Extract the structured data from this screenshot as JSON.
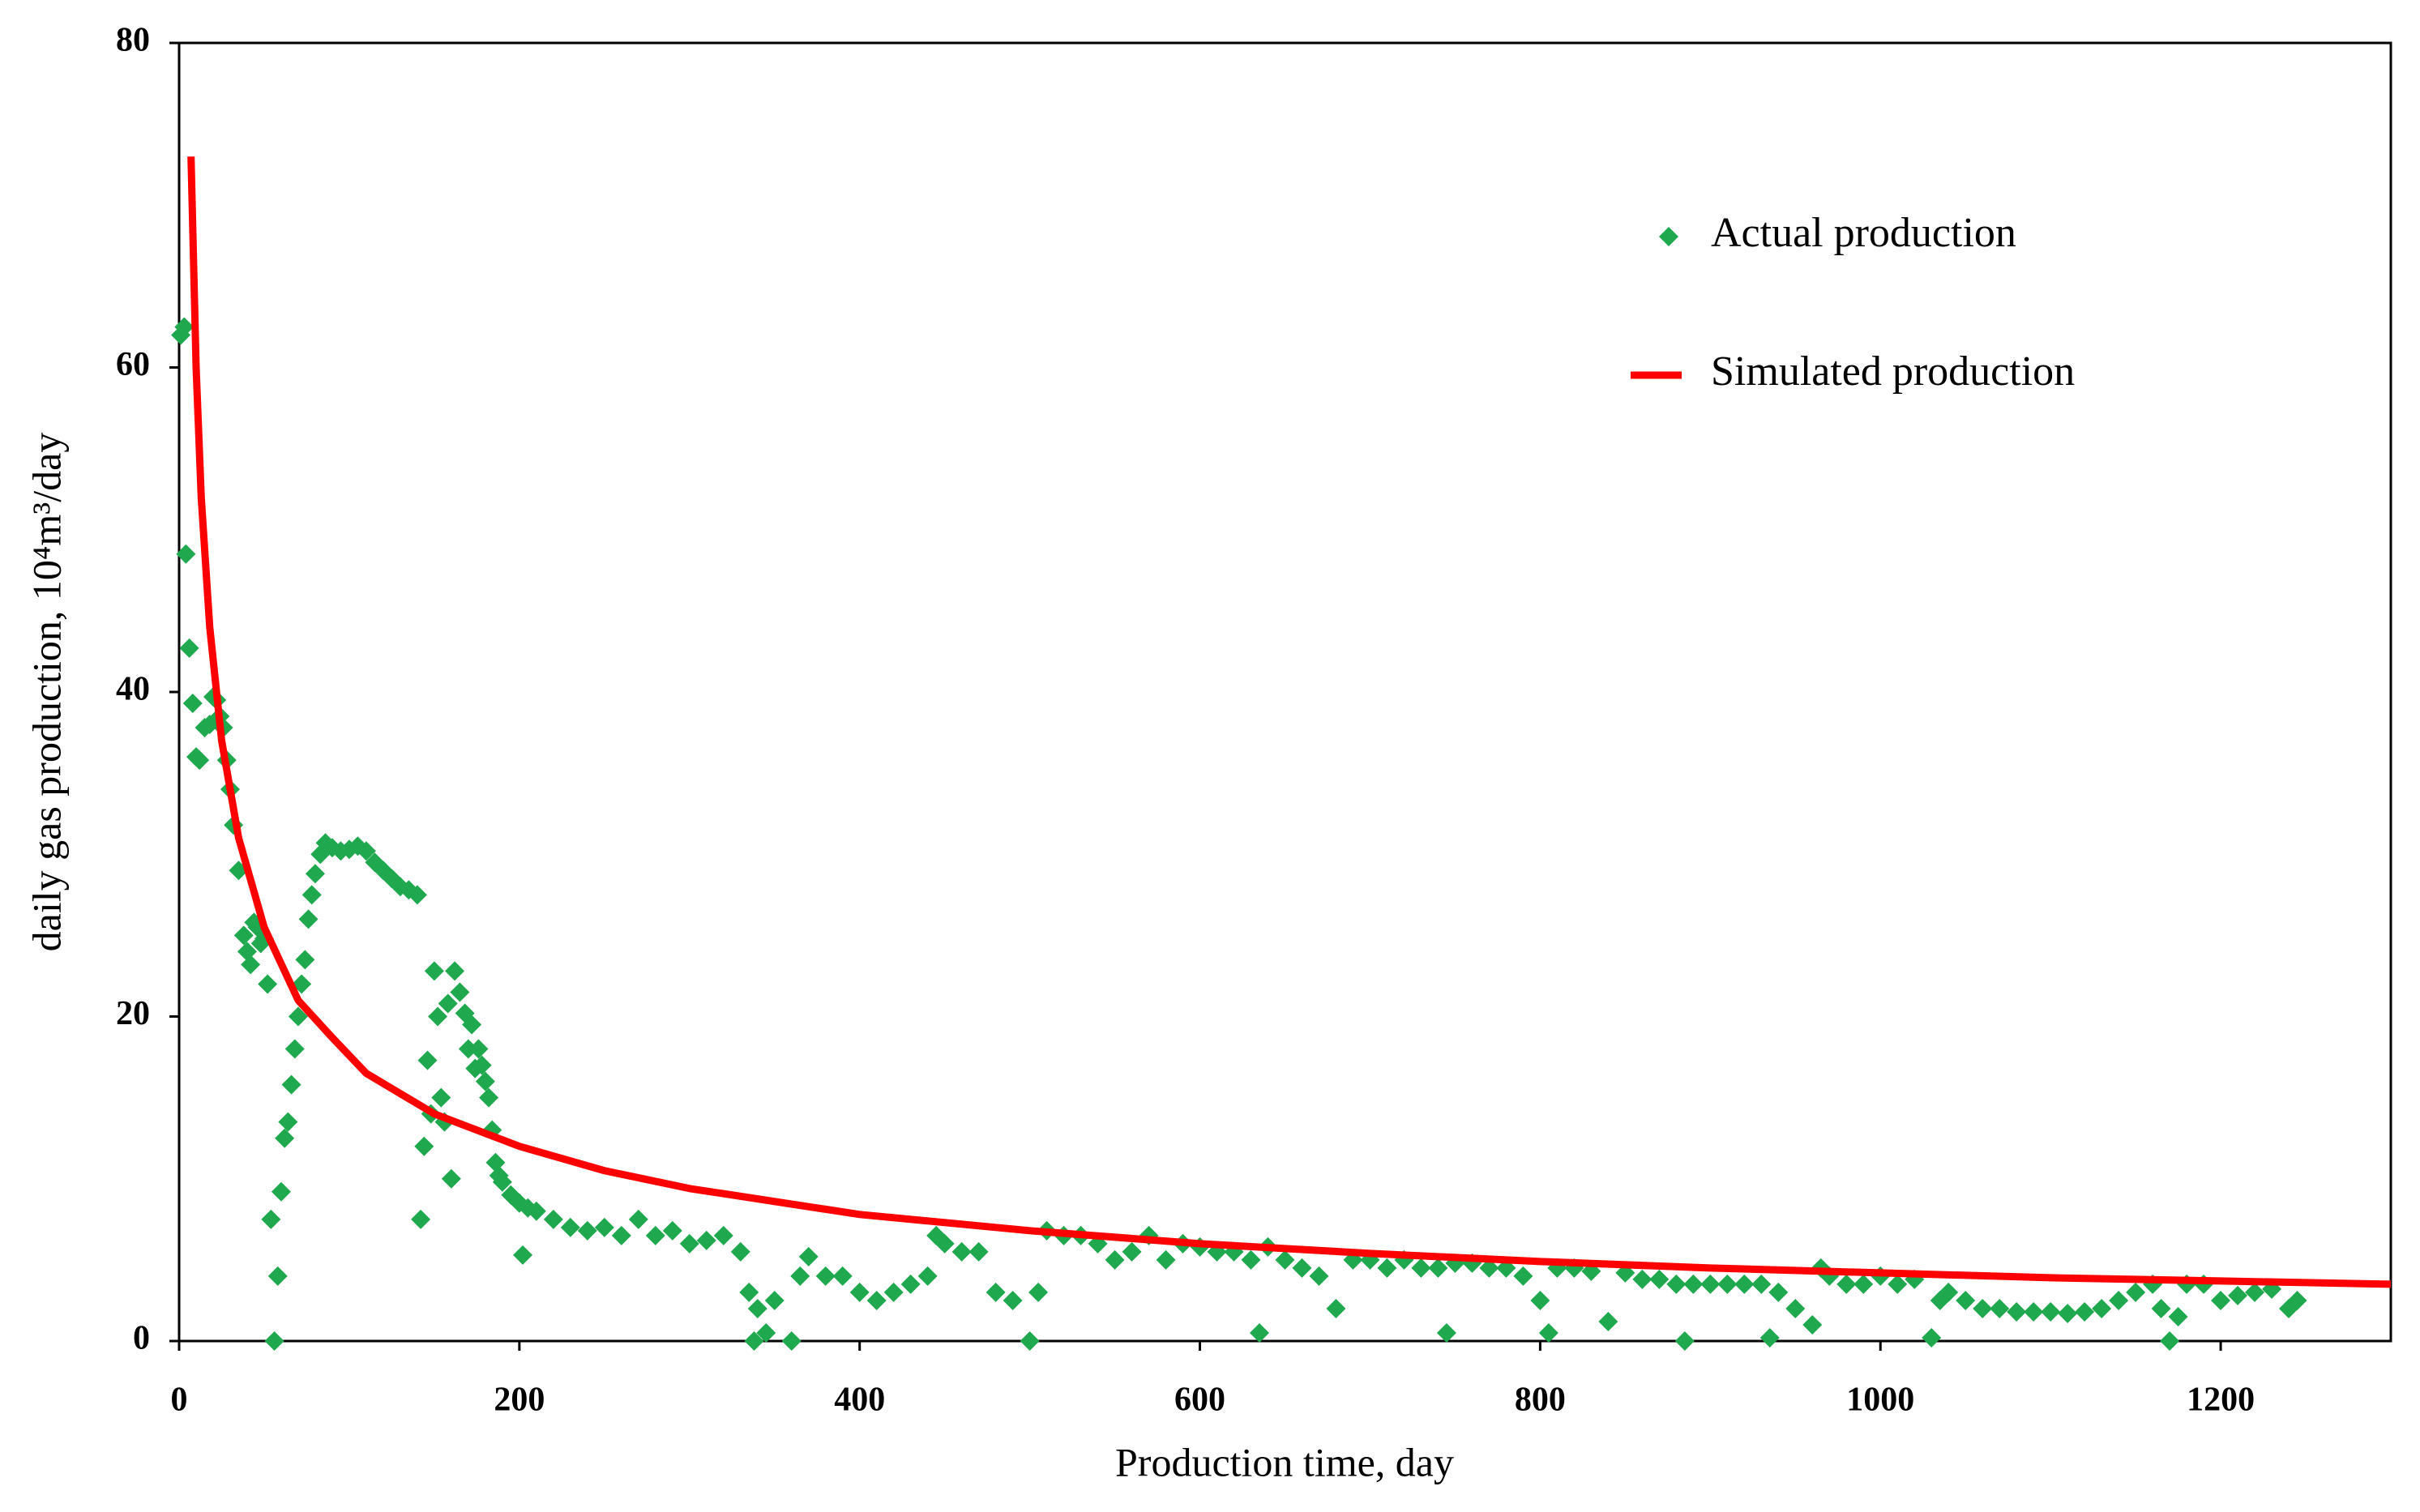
{
  "chart_data": {
    "type": "scatter",
    "x_label": "Production time, day",
    "y_label": "daily gas production, 10⁴m³/day",
    "xlim": [
      0,
      1300
    ],
    "xticks": [
      0,
      200,
      400,
      600,
      800,
      1000,
      1200
    ],
    "ylim": [
      0,
      80
    ],
    "yticks": [
      0,
      20,
      40,
      60,
      80
    ],
    "grid": false,
    "legend": "upper right",
    "series": [
      {
        "name": "Actual production",
        "color": "#1fa84e",
        "kind": "scatter",
        "x": [
          1,
          3,
          4,
          6,
          8,
          10,
          12,
          15,
          18,
          20,
          22,
          24,
          26,
          28,
          30,
          32,
          35,
          38,
          40,
          42,
          44,
          46,
          48,
          50,
          52,
          54,
          56,
          58,
          60,
          62,
          64,
          66,
          68,
          70,
          72,
          74,
          76,
          78,
          80,
          83,
          86,
          90,
          95,
          100,
          105,
          110,
          115,
          120,
          125,
          130,
          135,
          140,
          142,
          144,
          146,
          148,
          150,
          152,
          154,
          156,
          158,
          160,
          162,
          165,
          168,
          170,
          172,
          174,
          176,
          178,
          180,
          182,
          184,
          186,
          188,
          190,
          195,
          200,
          202,
          205,
          210,
          220,
          230,
          240,
          250,
          260,
          270,
          280,
          290,
          300,
          310,
          320,
          330,
          335,
          338,
          340,
          345,
          350,
          360,
          365,
          370,
          380,
          390,
          400,
          410,
          420,
          430,
          440,
          445,
          450,
          460,
          470,
          480,
          490,
          500,
          505,
          510,
          520,
          530,
          540,
          550,
          560,
          570,
          580,
          590,
          600,
          610,
          620,
          630,
          635,
          640,
          650,
          660,
          670,
          680,
          690,
          700,
          710,
          720,
          730,
          740,
          745,
          750,
          760,
          770,
          780,
          790,
          800,
          805,
          810,
          820,
          830,
          840,
          850,
          860,
          870,
          880,
          885,
          890,
          900,
          910,
          920,
          930,
          935,
          940,
          950,
          960,
          965,
          970,
          980,
          990,
          1000,
          1010,
          1020,
          1030,
          1035,
          1040,
          1050,
          1060,
          1070,
          1080,
          1090,
          1100,
          1110,
          1120,
          1130,
          1140,
          1150,
          1160,
          1165,
          1170,
          1175,
          1180,
          1190,
          1200,
          1210,
          1220,
          1230,
          1240,
          1245
        ],
        "values": [
          62,
          62.5,
          48.5,
          42.7,
          39.3,
          36,
          35.8,
          37.8,
          38,
          39.7,
          39.5,
          38.5,
          37.8,
          35.8,
          34,
          31.8,
          29,
          25,
          24,
          23.2,
          25.8,
          25.5,
          24.5,
          24.8,
          22,
          7.5,
          0,
          4,
          9.2,
          12.5,
          13.5,
          15.8,
          18,
          20,
          22,
          23.5,
          26,
          27.5,
          28.8,
          30,
          30.7,
          30.4,
          30.2,
          30.3,
          30.5,
          30.2,
          29.5,
          29,
          28.5,
          28,
          27.8,
          27.5,
          7.5,
          12,
          17.3,
          14,
          22.8,
          20,
          15,
          13.5,
          20.8,
          10,
          22.8,
          21.5,
          20.2,
          18,
          19.5,
          16.8,
          18,
          17,
          16,
          15,
          13,
          11,
          10.2,
          9.8,
          9,
          8.5,
          5.3,
          8.2,
          8,
          7.5,
          7,
          6.8,
          7,
          6.5,
          7.5,
          6.5,
          6.8,
          6,
          6.2,
          6.5,
          5.5,
          3,
          0,
          2,
          0.5,
          2.5,
          0,
          4,
          5.2,
          4,
          4,
          3,
          2.5,
          3,
          3.5,
          4,
          6.5,
          6,
          5.5,
          5.5,
          3,
          2.5,
          0,
          3,
          6.8,
          6.5,
          6.5,
          6,
          5,
          5.5,
          6.5,
          5,
          6,
          5.8,
          5.5,
          5.5,
          5,
          0.5,
          5.8,
          5,
          4.5,
          4,
          2,
          5,
          5,
          4.5,
          5,
          4.5,
          4.5,
          0.5,
          4.8,
          4.8,
          4.5,
          4.5,
          4,
          2.5,
          0.5,
          4.5,
          4.5,
          4.3,
          1.2,
          4.2,
          3.8,
          3.8,
          3.5,
          0,
          3.5,
          3.5,
          3.5,
          3.5,
          3.5,
          0.2,
          3,
          2,
          1,
          4.5,
          4,
          3.5,
          3.5,
          4,
          3.5,
          3.8,
          0.2,
          2.5,
          3,
          2.5,
          2,
          2,
          1.8,
          1.8,
          1.8,
          1.7,
          1.8,
          2,
          2.5,
          3,
          3.5,
          2,
          0,
          1.5,
          3.5,
          3.5,
          2.5,
          2.8,
          3,
          3.2,
          2,
          2.5
        ]
      },
      {
        "name": "Simulated production",
        "color": "#ff0000",
        "kind": "line",
        "x": [
          7,
          10,
          13,
          18,
          25,
          35,
          50,
          70,
          90,
          110,
          150,
          200,
          250,
          300,
          400,
          500,
          600,
          700,
          800,
          900,
          1000,
          1100,
          1200,
          1300
        ],
        "values": [
          73,
          60,
          52,
          44,
          37,
          31,
          25.5,
          21,
          18.7,
          16.5,
          14,
          12,
          10.5,
          9.4,
          7.8,
          6.8,
          6,
          5.4,
          4.9,
          4.5,
          4.2,
          3.9,
          3.7,
          3.5
        ]
      }
    ]
  }
}
